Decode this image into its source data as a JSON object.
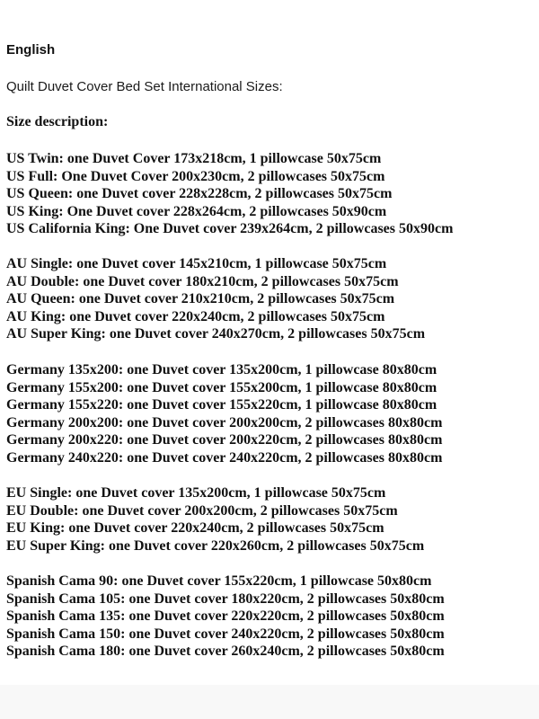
{
  "heading": "English",
  "subtitle": "Quilt Duvet Cover Bed Set International Sizes:",
  "size_description_label": "Size description:",
  "groups": [
    {
      "lines": [
        "US Twin: one Duvet Cover 173x218cm, 1 pillowcase 50x75cm",
        "US Full: One Duvet Cover 200x230cm, 2 pillowcases 50x75cm",
        "US Queen: one Duvet cover 228x228cm, 2 pillowcases 50x75cm",
        "US King: One Duvet cover 228x264cm, 2 pillowcases 50x90cm",
        "US California King: One Duvet cover 239x264cm, 2 pillowcases 50x90cm"
      ]
    },
    {
      "lines": [
        "AU Single: one Duvet cover 145x210cm, 1 pillowcase 50x75cm",
        "AU Double: one Duvet cover 180x210cm, 2 pillowcases 50x75cm",
        "AU Queen: one Duvet cover 210x210cm, 2 pillowcases 50x75cm",
        "AU King: one Duvet cover 220x240cm, 2 pillowcases 50x75cm",
        "AU Super King: one Duvet cover 240x270cm, 2 pillowcases 50x75cm"
      ]
    },
    {
      "lines": [
        "Germany 135x200: one Duvet cover 135x200cm, 1 pillowcase 80x80cm",
        "Germany 155x200: one Duvet cover 155x200cm, 1 pillowcase 80x80cm",
        "Germany 155x220: one Duvet cover 155x220cm, 1 pillowcase 80x80cm",
        "Germany 200x200: one Duvet cover 200x200cm, 2 pillowcases 80x80cm",
        "Germany 200x220: one Duvet cover 200x220cm, 2 pillowcases 80x80cm",
        "Germany 240x220: one Duvet cover 240x220cm, 2 pillowcases 80x80cm"
      ]
    },
    {
      "lines": [
        "EU Single: one Duvet cover 135x200cm, 1 pillowcase 50x75cm",
        "EU Double: one Duvet cover 200x200cm, 2 pillowcases 50x75cm",
        "EU King: one Duvet cover 220x240cm, 2 pillowcases 50x75cm",
        "EU Super King: one Duvet cover 220x260cm, 2 pillowcases 50x75cm"
      ]
    },
    {
      "lines": [
        "Spanish Cama 90: one Duvet cover 155x220cm, 1 pillowcase 50x80cm",
        "Spanish Cama 105: one Duvet cover 180x220cm, 2 pillowcases 50x80cm",
        "Spanish Cama 135: one Duvet cover 220x220cm, 2 pillowcases 50x80cm",
        "Spanish Cama 150: one Duvet cover 240x220cm, 2 pillowcases 50x80cm",
        "Spanish Cama 180: one Duvet cover 260x240cm, 2 pillowcases 50x80cm"
      ]
    }
  ]
}
